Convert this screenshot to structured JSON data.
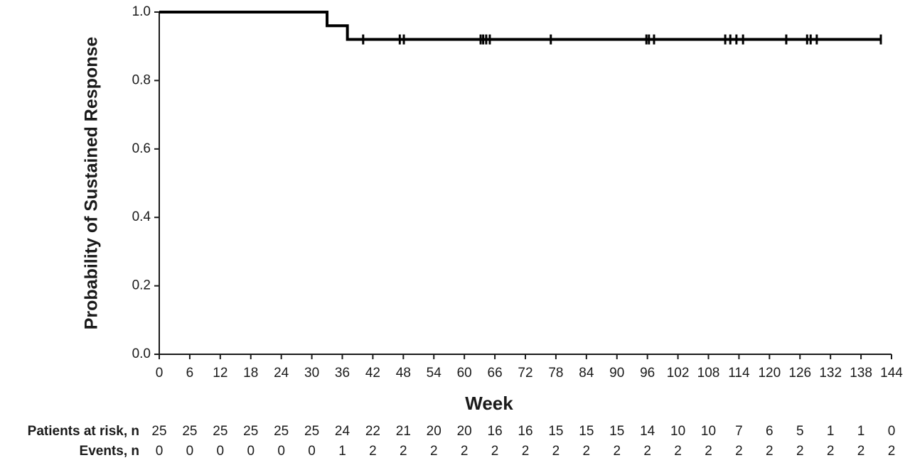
{
  "chart_data": {
    "type": "step",
    "y_label": "Probability of Sustained Response",
    "x_label": "Week",
    "color": "#000000",
    "x": [
      0,
      33,
      37,
      142
    ],
    "values": [
      1,
      0.96,
      0.92,
      0.92
    ],
    "censor_x": [
      40.1,
      47.3,
      48.1,
      63.2,
      63.7,
      64.3,
      65.0,
      77.0,
      95.8,
      96.3,
      97.3,
      111.3,
      112.3,
      113.5,
      114.8,
      123.3,
      127.4,
      128.1,
      129.3,
      141.9
    ],
    "censor_values": [
      0.92,
      0.92,
      0.92,
      0.92,
      0.92,
      0.92,
      0.92,
      0.92,
      0.92,
      0.92,
      0.92,
      0.92,
      0.92,
      0.92,
      0.92,
      0.92,
      0.92,
      0.92,
      0.92,
      0.92
    ],
    "xlim": [
      0,
      144
    ],
    "ylim": [
      0,
      1
    ],
    "xticks": [
      0,
      6,
      12,
      18,
      24,
      30,
      36,
      42,
      48,
      54,
      60,
      66,
      72,
      78,
      84,
      90,
      96,
      102,
      108,
      114,
      120,
      126,
      132,
      138,
      144
    ],
    "yticks": [
      {
        "value": 0,
        "label": "0.0"
      },
      0.2,
      0.4,
      0.6,
      0.8,
      {
        "value": 1,
        "label": "1.0"
      }
    ],
    "risk_table": [
      {
        "label": "Patients at risk, n",
        "values": [
          25,
          25,
          25,
          25,
          25,
          25,
          24,
          22,
          21,
          20,
          20,
          16,
          16,
          15,
          15,
          15,
          14,
          10,
          10,
          7,
          6,
          5,
          1,
          1,
          0
        ]
      },
      {
        "label": "Events, n",
        "values": [
          0,
          0,
          0,
          0,
          0,
          0,
          1,
          2,
          2,
          2,
          2,
          2,
          2,
          2,
          2,
          2,
          2,
          2,
          2,
          2,
          2,
          2,
          2,
          2,
          2
        ]
      }
    ]
  }
}
